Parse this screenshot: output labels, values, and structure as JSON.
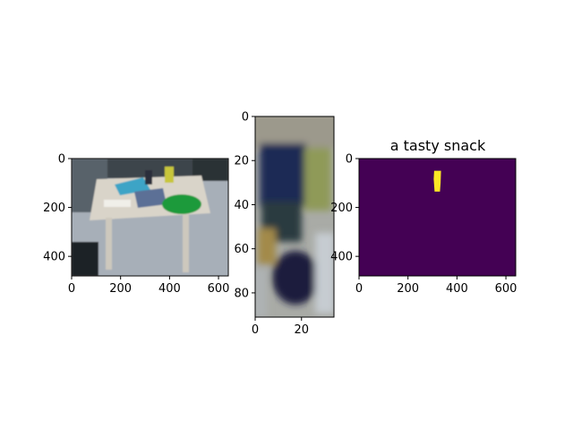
{
  "chart_data": [
    {
      "type": "image",
      "content": "rgb-photo-table-scene",
      "x_ticks": [
        "0",
        "200",
        "400",
        "600"
      ],
      "y_ticks": [
        "0",
        "200",
        "400"
      ],
      "xlim": [
        0,
        640
      ],
      "ylim": [
        480,
        0
      ],
      "title": ""
    },
    {
      "type": "image",
      "content": "rgb-crop-blurred-can",
      "x_ticks": [
        "0",
        "20"
      ],
      "y_ticks": [
        "0",
        "20",
        "40",
        "60",
        "80"
      ],
      "xlim": [
        0,
        34
      ],
      "ylim": [
        91,
        0
      ],
      "title": ""
    },
    {
      "type": "heatmap",
      "content": "binary-mask",
      "x_ticks": [
        "0",
        "200",
        "400",
        "600"
      ],
      "y_ticks": [
        "0",
        "200",
        "400"
      ],
      "xlim": [
        0,
        640
      ],
      "ylim": [
        480,
        0
      ],
      "title": "a tasty snack",
      "colors": {
        "background": "#440154",
        "foreground": "#fde725"
      },
      "mask_region": {
        "x": [
          305,
          335
        ],
        "y": [
          50,
          135
        ]
      }
    }
  ]
}
